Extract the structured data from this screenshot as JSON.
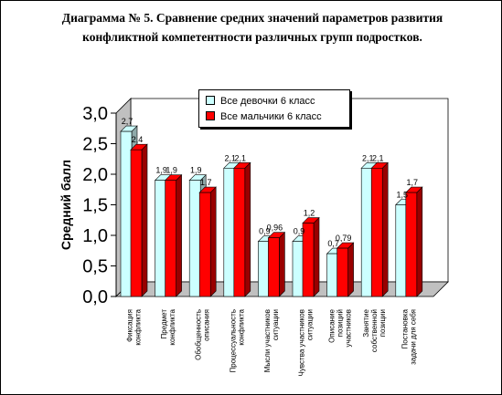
{
  "chart_data": {
    "type": "bar",
    "title": "Диаграмма № 5.   Сравнение средних значений параметров развития конфликтной компетентности различных групп подростков.",
    "ylabel": "Средний балл",
    "xlabel": "",
    "ylim": [
      0,
      3
    ],
    "yticks": [
      "0,0",
      "0,5",
      "1,0",
      "1,5",
      "2,0",
      "2,5",
      "3,0"
    ],
    "legend_position": "top-right",
    "categories": [
      [
        "Фиксация",
        "конфликта"
      ],
      [
        "Предмет",
        "конфликта"
      ],
      [
        "Обобщенность",
        "описания"
      ],
      [
        "Процессуальность",
        "конфликта"
      ],
      [
        "Мысли участников",
        "ситуации"
      ],
      [
        "Чувства участников",
        "ситуации"
      ],
      [
        "Описание",
        "позиций",
        "участников"
      ],
      [
        "Занятие",
        "собственной",
        "позиции"
      ],
      [
        "Постановка",
        "задачи для себя"
      ]
    ],
    "series": [
      {
        "name": "Все девочки 6 класс",
        "color": "#ccffff",
        "side_color": "#8faaaa",
        "values": [
          2.7,
          1.9,
          1.9,
          2.1,
          0.9,
          0.9,
          0.7,
          2.1,
          1.5
        ],
        "labels": [
          "2,7",
          "1,9",
          "1,9",
          "2,1",
          "0,9",
          "0,9",
          "0,7",
          "2,1",
          "1,5"
        ]
      },
      {
        "name": "Все мальчики 6 класс",
        "color": "#ff0000",
        "side_color": "#990000",
        "values": [
          2.4,
          1.9,
          1.7,
          2.1,
          0.96,
          1.2,
          0.79,
          2.1,
          1.7
        ],
        "labels": [
          "2,4",
          "1,9",
          "1,7",
          "2,1",
          "0,96",
          "1,2",
          "0,79",
          "2,1",
          "1,7"
        ]
      }
    ],
    "wall_color": "#c0c0c0"
  }
}
